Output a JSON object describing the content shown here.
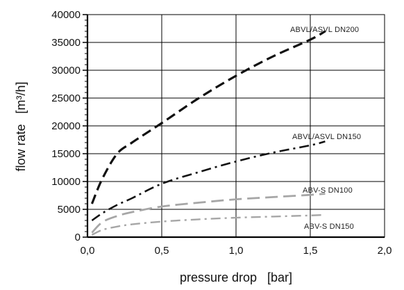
{
  "chart_data": {
    "type": "line",
    "title": "",
    "xlabel": "pressure drop   [bar]",
    "ylabel": "flow rate   [m³/h]",
    "xlim": [
      0,
      2
    ],
    "ylim": [
      0,
      40000
    ],
    "x_ticks": [
      "0,0",
      "0,5",
      "1,0",
      "1,5",
      "2,0"
    ],
    "x_tick_values": [
      0,
      0.5,
      1.0,
      1.5,
      2.0
    ],
    "y_ticks": [
      "0",
      "5000",
      "10000",
      "15000",
      "20000",
      "25000",
      "30000",
      "35000",
      "40000"
    ],
    "y_tick_values": [
      0,
      5000,
      10000,
      15000,
      20000,
      25000,
      30000,
      35000,
      40000
    ],
    "grid": true,
    "legend": "labels next to curves",
    "series": [
      {
        "name": "ABVL/ASVL  DN200",
        "color": "#111111",
        "dash": "dashed",
        "x": [
          0.03,
          0.1,
          0.2,
          0.3,
          0.5,
          0.75,
          1.0,
          1.25,
          1.5,
          1.6
        ],
        "y": [
          6000,
          10500,
          15000,
          17000,
          20500,
          25000,
          29000,
          32500,
          35500,
          37000
        ]
      },
      {
        "name": "ABVL/ASVL  DN150",
        "color": "#111111",
        "dash": "dash-dot",
        "x": [
          0.03,
          0.1,
          0.2,
          0.3,
          0.5,
          0.75,
          1.0,
          1.25,
          1.5,
          1.6
        ],
        "y": [
          3000,
          4300,
          5800,
          7000,
          9600,
          11700,
          13600,
          15200,
          16500,
          17200
        ]
      },
      {
        "name": "ABV-S  DN100",
        "color": "#a6a6a6",
        "dash": "long-dash",
        "x": [
          0.03,
          0.1,
          0.2,
          0.3,
          0.5,
          0.75,
          1.0,
          1.25,
          1.5,
          1.6
        ],
        "y": [
          800,
          2700,
          3800,
          4500,
          5500,
          6200,
          6800,
          7200,
          7600,
          7800
        ]
      },
      {
        "name": "ABV-S  DN150",
        "color": "#a6a6a6",
        "dash": "dash-dot",
        "x": [
          0.03,
          0.1,
          0.2,
          0.3,
          0.5,
          0.75,
          1.0,
          1.25,
          1.5,
          1.6
        ],
        "y": [
          400,
          1300,
          1900,
          2300,
          2800,
          3200,
          3500,
          3700,
          3900,
          4000
        ]
      }
    ]
  }
}
